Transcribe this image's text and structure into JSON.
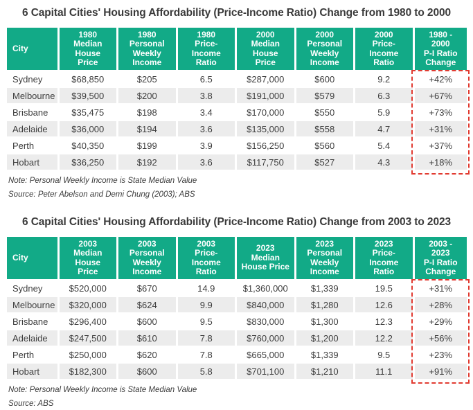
{
  "colors": {
    "header_green": "#12aa87",
    "row_alt_gray": "#ececec",
    "highlight_dashed_red": "#e13a30",
    "text": "#3d3d3d",
    "background": "#ffffff"
  },
  "chart_data": [
    {
      "type": "table",
      "title": "6 Capital Cities' Housing Affordability (Price-Income Ratio) Change from 1980 to 2000",
      "columns": [
        "City",
        "1980 Median House Price",
        "1980 Personal Weekly Income",
        "1980 Price-Income Ratio",
        "2000 Median House Price",
        "2000 Personal Weekly Income",
        "2000 Price-Income Ratio",
        "1980 - 2000 P-I Ratio Change"
      ],
      "header_lines": [
        "City",
        "1980\nMedian\nHouse\nPrice",
        "1980\nPersonal\nWeekly\nIncome",
        "1980\nPrice-\nIncome\nRatio",
        "2000\nMedian\nHouse\nPrice",
        "2000\nPersonal\nWeekly\nIncome",
        "2000\nPrice-\nIncome\nRatio",
        "1980 -\n2000\nP-I Ratio\nChange"
      ],
      "rows": [
        [
          "Sydney",
          "$68,850",
          "$205",
          "6.5",
          "$287,000",
          "$600",
          "9.2",
          "+42%"
        ],
        [
          "Melbourne",
          "$39,500",
          "$200",
          "3.8",
          "$191,000",
          "$579",
          "6.3",
          "+67%"
        ],
        [
          "Brisbane",
          "$35,475",
          "$198",
          "3.4",
          "$170,000",
          "$550",
          "5.9",
          "+73%"
        ],
        [
          "Adelaide",
          "$36,000",
          "$194",
          "3.6",
          "$135,000",
          "$558",
          "4.7",
          "+31%"
        ],
        [
          "Perth",
          "$40,350",
          "$199",
          "3.9",
          "$156,250",
          "$560",
          "5.4",
          "+37%"
        ],
        [
          "Hobart",
          "$36,250",
          "$192",
          "3.6",
          "$117,750",
          "$527",
          "4.3",
          "+18%"
        ]
      ],
      "note": "Note: Personal Weekly Income is State Median Value",
      "source": "Source: Peter Abelson and Demi Chung (2003); ABS",
      "layout_hints": {
        "highlight": "last column body cells outlined with red dashed rectangle",
        "alternating_rows": true
      }
    },
    {
      "type": "table",
      "title": "6 Capital Cities' Housing Affordability (Price-Income Ratio) Change from 2003 to 2023",
      "columns": [
        "City",
        "2003 Median House Price",
        "2003 Personal Weekly Income",
        "2003 Price-Income Ratio",
        "2023 Median House Price",
        "2023 Personal Weekly Income",
        "2023 Price-Income Ratio",
        "2003 - 2023 P-I Ratio Change"
      ],
      "header_lines": [
        "City",
        "2003\nMedian\nHouse\nPrice",
        "2003\nPersonal\nWeekly\nIncome",
        "2003\nPrice-\nIncome\nRatio",
        "2023\nMedian\nHouse Price",
        "2023\nPersonal\nWeekly\nIncome",
        "2023\nPrice-\nIncome\nRatio",
        "2003 -\n2023\nP-I Ratio\nChange"
      ],
      "rows": [
        [
          "Sydney",
          "$520,000",
          "$670",
          "14.9",
          "$1,360,000",
          "$1,339",
          "19.5",
          "+31%"
        ],
        [
          "Melbourne",
          "$320,000",
          "$624",
          "9.9",
          "$840,000",
          "$1,280",
          "12.6",
          "+28%"
        ],
        [
          "Brisbane",
          "$296,400",
          "$600",
          "9.5",
          "$830,000",
          "$1,300",
          "12.3",
          "+29%"
        ],
        [
          "Adelaide",
          "$247,500",
          "$610",
          "7.8",
          "$760,000",
          "$1,200",
          "12.2",
          "+56%"
        ],
        [
          "Perth",
          "$250,000",
          "$620",
          "7.8",
          "$665,000",
          "$1,339",
          "9.5",
          "+23%"
        ],
        [
          "Hobart",
          "$182,300",
          "$600",
          "5.8",
          "$701,100",
          "$1,210",
          "11.1",
          "+91%"
        ]
      ],
      "note": "Note: Personal Weekly Income is State Median Value",
      "source": "Source: ABS",
      "layout_hints": {
        "highlight": "last column body cells outlined with red dashed rectangle",
        "alternating_rows": true
      }
    }
  ]
}
